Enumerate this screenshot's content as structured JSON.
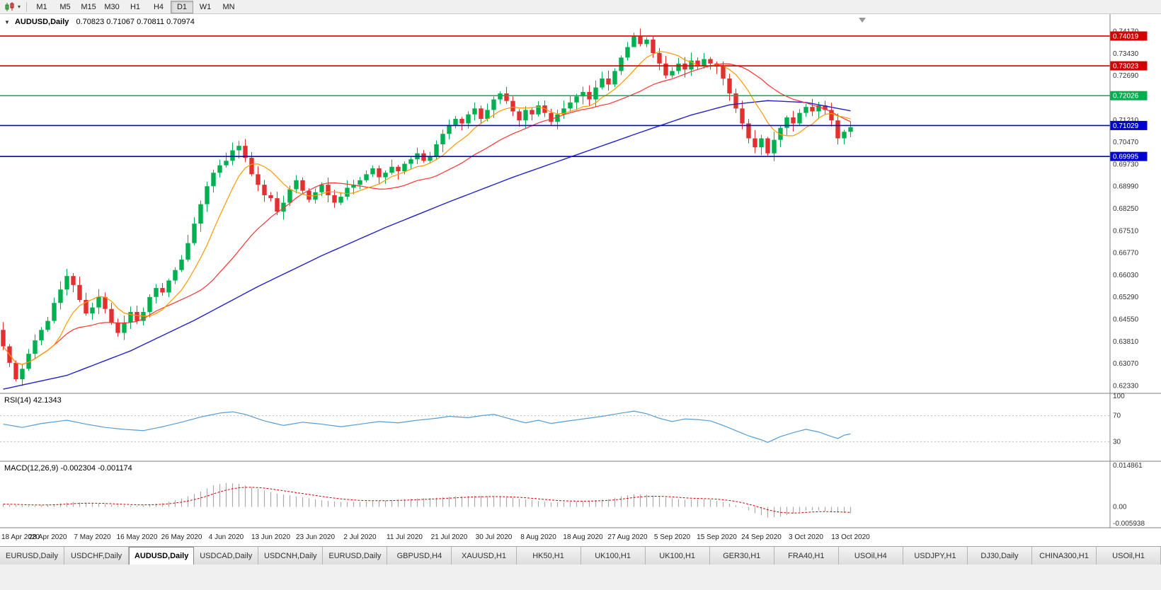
{
  "toolbar": {
    "timeframes": [
      "M1",
      "M5",
      "M15",
      "M30",
      "H1",
      "H4",
      "D1",
      "W1",
      "MN"
    ],
    "active_timeframe": "D1"
  },
  "icons": {
    "collapse": "▼",
    "chart_dropdown_caret": "▾"
  },
  "chart": {
    "title_symbol": "AUDUSD,Daily",
    "title_ohlc": "0.70823 0.71067 0.70811 0.70974"
  },
  "rsi_panel": {
    "label": "RSI(14) 42.1343"
  },
  "macd_panel": {
    "label": "MACD(12,26,9) -0.002304 -0.001174"
  },
  "tabs": {
    "active_index": 2,
    "items": [
      "EURUSD,Daily",
      "USDCHF,Daily",
      "AUDUSD,Daily",
      "USDCAD,Daily",
      "USDCNH,Daily",
      "EURUSD,Daily",
      "GBPUSD,H4",
      "XAUUSD,H1",
      "HK50,H1",
      "UK100,H1",
      "UK100,H1",
      "GER30,H1",
      "FRA40,H1",
      "USOil,H4",
      "USDJPY,H1",
      "DJ30,Daily",
      "CHINA300,H1",
      "USOil,H1"
    ]
  },
  "chart_data": {
    "type": "candlestick",
    "symbol": "AUDUSD",
    "timeframe": "Daily",
    "ohlc_current": {
      "open": 0.70823,
      "high": 0.71067,
      "low": 0.70811,
      "close": 0.70974
    },
    "up_color": "#00B050",
    "down_color": "#E03030",
    "num_candles": 134,
    "candles_per_tick": 7,
    "x_tick_labels": [
      "18 Apr 2020",
      "28 Apr 2020",
      "7 May 2020",
      "16 May 2020",
      "26 May 2020",
      "4 Jun 2020",
      "13 Jun 2020",
      "23 Jun 2020",
      "2 Jul 2020",
      "11 Jul 2020",
      "21 Jul 2020",
      "30 Jul 2020",
      "8 Aug 2020",
      "18 Aug 2020",
      "27 Aug 2020",
      "5 Sep 2020",
      "15 Sep 2020",
      "24 Sep 2020",
      "3 Oct 2020",
      "13 Oct 2020"
    ],
    "ylim": [
      0.6208,
      0.7475
    ],
    "y_axis_ticks": [
      "0.74170",
      "0.73430",
      "0.72690",
      "0.71950",
      "0.71210",
      "0.70470",
      "0.69730",
      "0.68990",
      "0.68250",
      "0.67510",
      "0.66770",
      "0.66030",
      "0.65290",
      "0.64550",
      "0.63810",
      "0.63070",
      "0.62330"
    ],
    "first_open": 0.642,
    "closes": [
      0.6365,
      0.631,
      0.6255,
      0.629,
      0.634,
      0.6385,
      0.642,
      0.645,
      0.651,
      0.6555,
      0.66,
      0.657,
      0.652,
      0.6475,
      0.6495,
      0.653,
      0.649,
      0.6445,
      0.641,
      0.6445,
      0.648,
      0.645,
      0.648,
      0.653,
      0.656,
      0.6545,
      0.6585,
      0.662,
      0.6655,
      0.671,
      0.6775,
      0.684,
      0.69,
      0.6945,
      0.697,
      0.6985,
      0.702,
      0.7035,
      0.6995,
      0.694,
      0.6905,
      0.687,
      0.686,
      0.6815,
      0.6845,
      0.689,
      0.692,
      0.6885,
      0.6855,
      0.688,
      0.6905,
      0.687,
      0.6845,
      0.6865,
      0.6895,
      0.6905,
      0.692,
      0.694,
      0.696,
      0.693,
      0.6945,
      0.6965,
      0.695,
      0.6975,
      0.699,
      0.701,
      0.6985,
      0.7,
      0.704,
      0.7075,
      0.7105,
      0.7125,
      0.711,
      0.714,
      0.716,
      0.7125,
      0.7155,
      0.719,
      0.721,
      0.7185,
      0.715,
      0.712,
      0.7155,
      0.714,
      0.717,
      0.7145,
      0.7115,
      0.714,
      0.716,
      0.718,
      0.72,
      0.7215,
      0.719,
      0.723,
      0.726,
      0.724,
      0.7285,
      0.733,
      0.7365,
      0.74,
      0.7375,
      0.739,
      0.7345,
      0.731,
      0.727,
      0.7285,
      0.731,
      0.729,
      0.732,
      0.73,
      0.7325,
      0.731,
      0.73,
      0.726,
      0.721,
      0.716,
      0.711,
      0.706,
      0.703,
      0.706,
      0.701,
      0.7055,
      0.7095,
      0.713,
      0.711,
      0.7145,
      0.7165,
      0.715,
      0.717,
      0.7155,
      0.712,
      0.706,
      0.7082,
      0.70974
    ],
    "wick_overrides": {
      "2": [
        0.6318,
        0.6248
      ],
      "99": [
        0.7413,
        0.7366
      ],
      "120": [
        0.7065,
        0.7002
      ]
    },
    "levels": [
      {
        "price": 0.74019,
        "label": "0.74019",
        "color": "#D40000"
      },
      {
        "price": 0.73023,
        "label": "0.73023",
        "color": "#D40000"
      },
      {
        "price": 0.72026,
        "label": "0.72026",
        "color": "#00B050"
      },
      {
        "price": 0.71029,
        "label": "0.71029",
        "color": "#0000D4"
      },
      {
        "price": 0.69995,
        "label": "0.69995",
        "color": "#0000D4"
      }
    ],
    "ma": {
      "fast": {
        "period": 8,
        "color": "#FF9900"
      },
      "medium": {
        "period": 21,
        "color": "#FF3333"
      },
      "slow_color": "#2222CC",
      "slow_anchors": [
        [
          0,
          0.6222
        ],
        [
          10,
          0.6268
        ],
        [
          20,
          0.635
        ],
        [
          30,
          0.6452
        ],
        [
          40,
          0.6565
        ],
        [
          50,
          0.6668
        ],
        [
          60,
          0.6762
        ],
        [
          70,
          0.6848
        ],
        [
          80,
          0.693
        ],
        [
          90,
          0.7005
        ],
        [
          100,
          0.708
        ],
        [
          108,
          0.7138
        ],
        [
          114,
          0.7172
        ],
        [
          120,
          0.7186
        ],
        [
          126,
          0.718
        ],
        [
          133,
          0.7152
        ]
      ]
    },
    "rsi": {
      "period": 14,
      "current": 42.1343,
      "color": "#559DD4",
      "levels": [
        70,
        30
      ],
      "axis_labels": [
        "100",
        "70",
        "30"
      ],
      "anchors": [
        [
          0,
          57
        ],
        [
          3,
          52
        ],
        [
          6,
          58
        ],
        [
          10,
          63
        ],
        [
          13,
          57
        ],
        [
          16,
          52
        ],
        [
          19,
          49
        ],
        [
          22,
          47
        ],
        [
          25,
          53
        ],
        [
          28,
          60
        ],
        [
          31,
          68
        ],
        [
          34,
          74
        ],
        [
          36,
          76
        ],
        [
          38,
          72
        ],
        [
          41,
          62
        ],
        [
          44,
          55
        ],
        [
          47,
          60
        ],
        [
          50,
          57
        ],
        [
          53,
          53
        ],
        [
          56,
          57
        ],
        [
          59,
          61
        ],
        [
          62,
          59
        ],
        [
          65,
          63
        ],
        [
          68,
          66
        ],
        [
          70,
          69
        ],
        [
          73,
          67
        ],
        [
          75,
          70
        ],
        [
          77,
          72
        ],
        [
          80,
          64
        ],
        [
          82,
          59
        ],
        [
          84,
          63
        ],
        [
          86,
          58
        ],
        [
          88,
          61
        ],
        [
          91,
          65
        ],
        [
          94,
          69
        ],
        [
          97,
          74
        ],
        [
          99,
          77
        ],
        [
          101,
          73
        ],
        [
          103,
          66
        ],
        [
          105,
          61
        ],
        [
          107,
          65
        ],
        [
          109,
          64
        ],
        [
          111,
          62
        ],
        [
          113,
          55
        ],
        [
          115,
          47
        ],
        [
          117,
          39
        ],
        [
          119,
          33
        ],
        [
          120,
          29
        ],
        [
          122,
          38
        ],
        [
          124,
          44
        ],
        [
          126,
          49
        ],
        [
          128,
          45
        ],
        [
          130,
          38
        ],
        [
          131,
          35
        ],
        [
          132,
          40
        ],
        [
          133,
          42.13
        ]
      ]
    },
    "macd": {
      "params": "12,26,9",
      "macd_current": -0.002304,
      "signal_current": -0.001174,
      "hist_color": "#AAAAAA",
      "signal_color": "#D40000",
      "ylim": [
        -0.005938,
        0.014861
      ],
      "axis_labels": [
        "0.014861",
        "0.00",
        "-0.005938"
      ],
      "anchors": [
        [
          0,
          0.001
        ],
        [
          4,
          0.0004
        ],
        [
          7,
          0.0008
        ],
        [
          11,
          0.0018
        ],
        [
          14,
          0.0014
        ],
        [
          18,
          0.0006
        ],
        [
          21,
          0.0004
        ],
        [
          25,
          0.0014
        ],
        [
          28,
          0.003
        ],
        [
          31,
          0.0055
        ],
        [
          33,
          0.0078
        ],
        [
          35,
          0.0086
        ],
        [
          37,
          0.0083
        ],
        [
          40,
          0.0065
        ],
        [
          43,
          0.0048
        ],
        [
          46,
          0.0038
        ],
        [
          50,
          0.0024
        ],
        [
          53,
          0.0018
        ],
        [
          56,
          0.0018
        ],
        [
          59,
          0.0022
        ],
        [
          62,
          0.0026
        ],
        [
          65,
          0.003
        ],
        [
          68,
          0.0033
        ],
        [
          71,
          0.0038
        ],
        [
          74,
          0.004
        ],
        [
          77,
          0.0038
        ],
        [
          80,
          0.0032
        ],
        [
          83,
          0.0024
        ],
        [
          86,
          0.0016
        ],
        [
          89,
          0.0018
        ],
        [
          92,
          0.0022
        ],
        [
          95,
          0.0028
        ],
        [
          97,
          0.0038
        ],
        [
          99,
          0.0046
        ],
        [
          101,
          0.0044
        ],
        [
          103,
          0.0038
        ],
        [
          105,
          0.003
        ],
        [
          107,
          0.0026
        ],
        [
          109,
          0.0027
        ],
        [
          111,
          0.0027
        ],
        [
          113,
          0.0018
        ],
        [
          115,
          0.0006
        ],
        [
          116,
          -0.0002
        ],
        [
          118,
          -0.0022
        ],
        [
          120,
          -0.0038
        ],
        [
          122,
          -0.0035
        ],
        [
          124,
          -0.0024
        ],
        [
          126,
          -0.0013
        ],
        [
          128,
          -0.0012
        ],
        [
          130,
          -0.0019
        ],
        [
          133,
          -0.0023
        ]
      ]
    }
  }
}
